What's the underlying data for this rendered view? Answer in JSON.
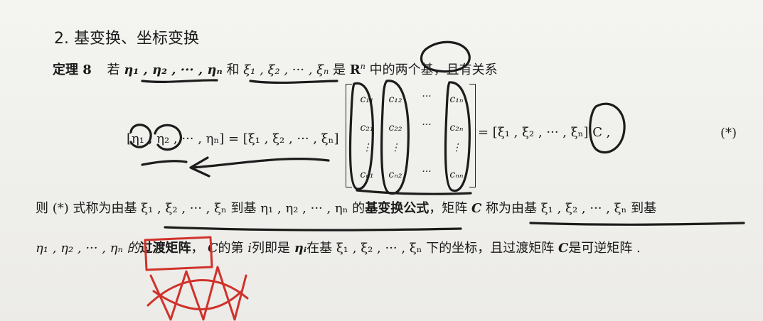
{
  "section": {
    "title": "2. 基变换、坐标变换"
  },
  "theorem": {
    "label": "定理 8",
    "ruo": "若",
    "eta_list": "η₁ , η₂ , ··· , ηₙ",
    "he": "和",
    "xi_list": "ξ₁ , ξ₂ , ··· , ξₙ",
    "is": "是",
    "space": "R",
    "space_sup": "n",
    "tail": "中的两个基，且有关系"
  },
  "equation": {
    "lhs": "[η₁ , η₂ , ··· , ηₙ] = [ξ₁ , ξ₂ , ··· , ξₙ]",
    "matrix": [
      [
        "c₁₁",
        "c₁₂",
        "···",
        "c₁ₙ"
      ],
      [
        "c₂₁",
        "c₂₂",
        "···",
        "c₂ₙ"
      ],
      [
        "⋮",
        "⋮",
        "",
        "⋮"
      ],
      [
        "cₙ₁",
        "cₙ₂",
        "···",
        "cₙₙ"
      ]
    ],
    "rhs": "= [ξ₁ , ξ₂ , ··· , ξₙ] C ,",
    "tag": "(*)"
  },
  "then_line": {
    "a": "则 (*) 式称为由基 ξ₁ , ξ₂ , ··· , ξₙ 到基 η₁ , η₂ , ··· , ηₙ 的",
    "b": "基变换公式",
    "c": "，矩阵",
    "C": "C",
    "d": "称为由基 ξ₁ , ξ₂ , ··· , ξₙ 到基"
  },
  "coord_line": {
    "a": "η₁ , η₂ , ··· , ηₙ 的",
    "b": "过渡矩阵",
    "c": "，",
    "C": "C",
    "d": "的第",
    "i": "i",
    "e": "列即是",
    "eta_i": "ηᵢ",
    "f": "在基 ξ₁ , ξ₂ , ··· , ξₙ 下的坐标，且过渡矩阵",
    "C2": "C",
    "g": "是可逆矩阵 ."
  },
  "ink_colors": {
    "pen": "#1c1c1c",
    "red_pen": "#d0322b"
  }
}
